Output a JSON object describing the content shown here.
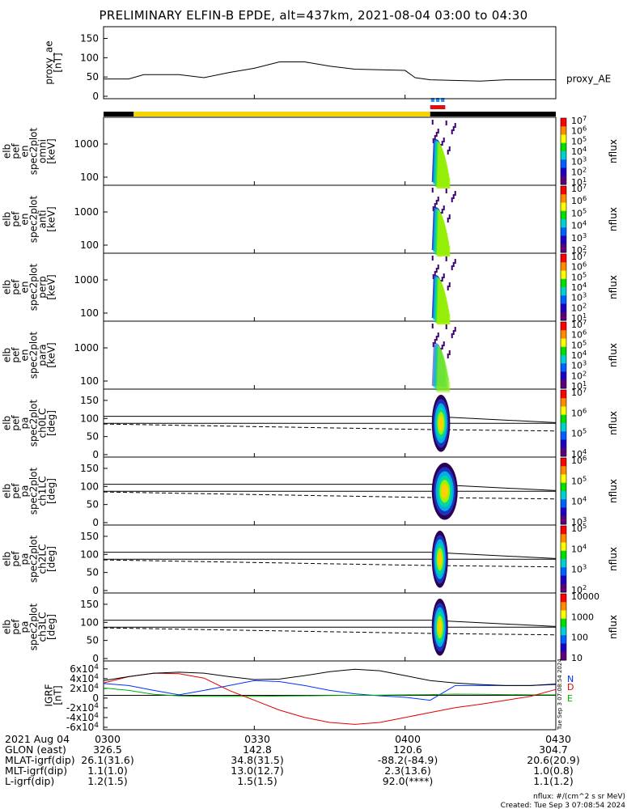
{
  "title": "PRELIMINARY ELFIN-B EPDE, alt=437km, 2021-08-04 03:00 to 04:30",
  "colors": {
    "zone_bar_black": "#000000",
    "zone_bar_yellow": "#f5d400",
    "marker_blue": "#1e90ff",
    "marker_red": "#e01010",
    "bx": "#0030ff",
    "by": "#e00000",
    "bz": "#00b000",
    "btot": "#000000"
  },
  "zone_bar": {
    "segments": [
      {
        "color": "black",
        "t_start": "03:00",
        "t_end": "03:06"
      },
      {
        "color": "yellow",
        "t_start": "03:06",
        "t_end": "04:05"
      },
      {
        "color": "black",
        "t_start": "04:05",
        "t_end": "04:30"
      }
    ],
    "markers": [
      {
        "color": "blue",
        "t_start": "04:05",
        "t_end": "04:08"
      },
      {
        "color": "red",
        "t_start": "04:05",
        "t_end": "04:08"
      }
    ]
  },
  "panels": [
    {
      "label_lines": [
        "proxy_ae",
        "[nT]"
      ],
      "side_label": "proxy_AE",
      "ticks": [
        "0",
        "50",
        "100",
        "150"
      ]
    },
    {
      "label_lines": [
        "elb",
        "pef",
        "en",
        "spec2plot",
        "omni",
        "[keV]"
      ],
      "ticks": [
        "100",
        "1000"
      ],
      "colorbar": {
        "label": "nflux",
        "ticks": [
          "101",
          "102",
          "103",
          "104",
          "105",
          "106",
          "107"
        ]
      }
    },
    {
      "label_lines": [
        "elb",
        "pef",
        "en",
        "spec2plot",
        "anti",
        "[keV]"
      ],
      "ticks": [
        "100",
        "1000"
      ],
      "colorbar": {
        "label": "nflux",
        "ticks": [
          "102",
          "103",
          "104",
          "105",
          "106",
          "107"
        ]
      }
    },
    {
      "label_lines": [
        "elb",
        "pef",
        "en",
        "spec2plot",
        "perp",
        "[keV]"
      ],
      "ticks": [
        "100",
        "1000"
      ],
      "colorbar": {
        "label": "nflux",
        "ticks": [
          "101",
          "102",
          "103",
          "104",
          "105",
          "106",
          "107"
        ]
      }
    },
    {
      "label_lines": [
        "elb",
        "pef",
        "en",
        "spec2plot",
        "para",
        "[keV]"
      ],
      "ticks": [
        "100",
        "1000"
      ],
      "colorbar": {
        "label": "nflux",
        "ticks": [
          "101",
          "102",
          "103",
          "104",
          "105",
          "106",
          "107"
        ]
      }
    },
    {
      "label_lines": [
        "elb",
        "pef",
        "pa",
        "spec2plot",
        "ch0LC",
        "[deg]"
      ],
      "ticks": [
        "0",
        "50",
        "100",
        "150"
      ],
      "colorbar": {
        "label": "nflux",
        "ticks": [
          "104",
          "105",
          "106",
          "107"
        ]
      }
    },
    {
      "label_lines": [
        "elb",
        "pef",
        "pa",
        "spec2plot",
        "ch1LC",
        "[deg]"
      ],
      "ticks": [
        "0",
        "50",
        "100",
        "150"
      ],
      "colorbar": {
        "label": "nflux",
        "ticks": [
          "103",
          "104",
          "105",
          "106"
        ]
      }
    },
    {
      "label_lines": [
        "elb",
        "pef",
        "pa",
        "spec2plot",
        "ch2LC",
        "[deg]"
      ],
      "ticks": [
        "0",
        "50",
        "100",
        "150"
      ],
      "colorbar": {
        "label": "nflux",
        "ticks": [
          "102",
          "103",
          "104",
          "105"
        ]
      }
    },
    {
      "label_lines": [
        "elb",
        "pef",
        "pa",
        "spec2plot",
        "ch3LC",
        "[deg]"
      ],
      "ticks": [
        "0",
        "50",
        "100",
        "150"
      ],
      "colorbar": {
        "label": "nflux",
        "ticks": [
          "10",
          "100",
          "1000",
          "10000"
        ]
      }
    },
    {
      "label_lines": [
        "IGRF",
        "[nT]"
      ],
      "ticks": [
        "-6x104",
        "-4x104",
        "-2x104",
        "0",
        "2x104",
        "4x104",
        "6x104"
      ],
      "legend": [
        "N",
        "E",
        "D"
      ],
      "side_stamp": "Tue Sep  3 07:08:54 2024"
    }
  ],
  "chart_data": [
    {
      "type": "line",
      "title": "PRELIMINARY ELFIN-B EPDE, alt=437km, 2021-08-04 03:00 to 04:30",
      "ylabel": "proxy_ae [nT]",
      "ylim": [
        0,
        150
      ],
      "x": [
        "03:00",
        "03:05",
        "03:08",
        "03:15",
        "03:20",
        "03:25",
        "03:30",
        "03:35",
        "03:40",
        "03:45",
        "03:50",
        "04:00",
        "04:02",
        "04:05",
        "04:15",
        "04:20",
        "04:30"
      ],
      "series": [
        {
          "name": "proxy_AE",
          "values": [
            35,
            35,
            45,
            45,
            38,
            50,
            60,
            75,
            75,
            65,
            58,
            55,
            38,
            33,
            30,
            33,
            33
          ]
        }
      ]
    },
    {
      "type": "heatmap",
      "title": "",
      "panels": [
        "omni",
        "anti",
        "perp",
        "para"
      ],
      "ylabel": "[keV]",
      "yscale": "log",
      "ylim": [
        60,
        7000
      ],
      "active_time": [
        "04:05",
        "04:08"
      ],
      "colorbar": {
        "label": "nflux",
        "scale": "log",
        "range": [
          10,
          10000000
        ]
      }
    },
    {
      "type": "heatmap",
      "title": "",
      "panels": [
        "ch0LC",
        "ch1LC",
        "ch2LC",
        "ch3LC"
      ],
      "ylabel": "[deg]",
      "ylim": [
        0,
        180
      ],
      "active_time": [
        "04:05",
        "04:08"
      ],
      "colorbar": {
        "label": "nflux",
        "scale": "log"
      }
    },
    {
      "type": "line",
      "ylabel": "IGRF [nT]",
      "ylim": [
        -60000,
        60000
      ],
      "x": [
        "03:00",
        "03:05",
        "03:10",
        "03:15",
        "03:20",
        "03:25",
        "03:30",
        "03:35",
        "03:40",
        "03:45",
        "03:50",
        "03:55",
        "04:00",
        "04:05",
        "04:10",
        "04:15",
        "04:20",
        "04:25",
        "04:30"
      ],
      "series": [
        {
          "name": "N",
          "values": [
            24000,
            20000,
            10000,
            1000,
            10000,
            20000,
            30000,
            28000,
            20000,
            10000,
            3000,
            -1000,
            -4000,
            -10000,
            20000,
            20000,
            20000,
            20000,
            22000
          ]
        },
        {
          "name": "E",
          "values": [
            15000,
            10000,
            2000,
            -1000,
            -2000,
            -2000,
            -2000,
            -1500,
            -1000,
            -500,
            0,
            500,
            1000,
            1500,
            2500,
            2000,
            1500,
            1000,
            1000
          ]
        },
        {
          "name": "D",
          "values": [
            25000,
            38000,
            45000,
            44000,
            35000,
            10000,
            -10000,
            -30000,
            -45000,
            -55000,
            -59000,
            -55000,
            -45000,
            -35000,
            -25000,
            -18000,
            -10000,
            -2000,
            12000
          ]
        },
        {
          "values": [
            30000,
            38000,
            45000,
            47000,
            45000,
            38000,
            32000,
            33000,
            40000,
            48000,
            53000,
            50000,
            40000,
            30000,
            25000,
            22000,
            20000,
            20000,
            23000
          ]
        }
      ]
    }
  ],
  "footer": {
    "rows": [
      [
        "2021 Aug 04",
        "0300",
        "0330",
        "0400",
        "0430"
      ],
      [
        "GLON (east)",
        "326.5",
        "142.8",
        "120.6",
        "304.7"
      ],
      [
        "MLAT-igrf(dip)",
        "26.1(31.6)",
        "34.8(31.5)",
        "-88.2(-84.9)",
        "20.6(20.9)"
      ],
      [
        "MLT-igrf(dip)",
        "1.1(1.0)",
        "13.0(12.7)",
        "2.3(13.6)",
        "1.0(0.8)"
      ],
      [
        "L-igrf(dip)",
        "1.2(1.5)",
        "1.5(1.5)",
        "92.0(****)",
        "1.1(1.2)"
      ]
    ],
    "units_note": "nflux: #/(cm^2 s sr MeV)",
    "created": "Created: Tue Sep  3 07:08:54 2024"
  }
}
